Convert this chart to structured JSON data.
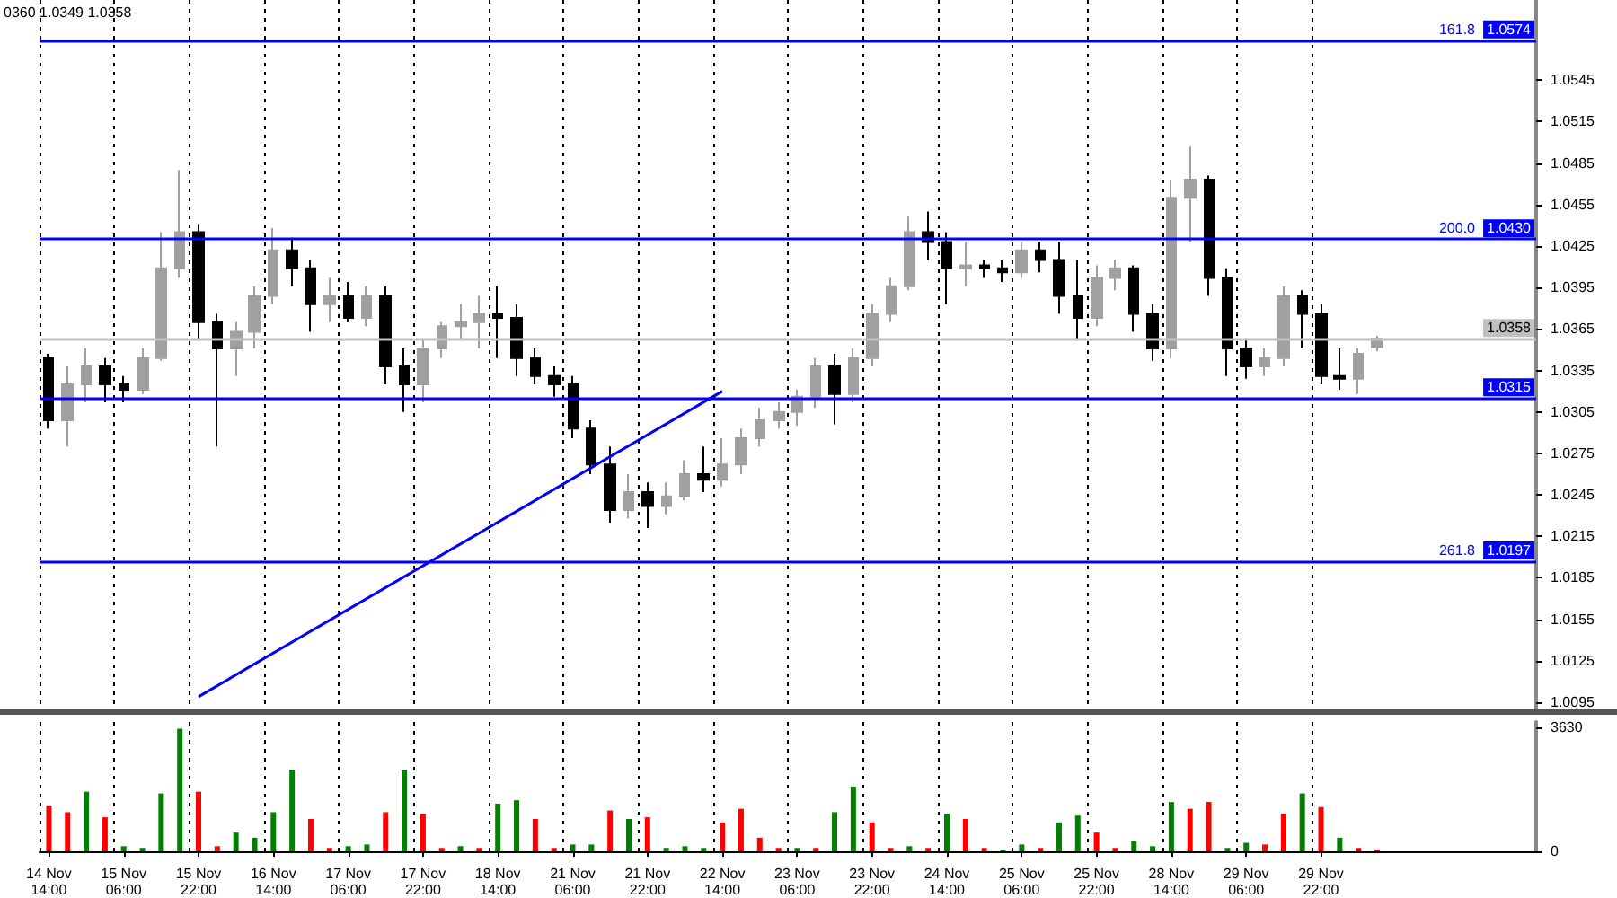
{
  "chart_data": [
    {
      "type": "candlestick",
      "annotations": [
        "0360 1.0349 1.0358",
        {
          "text": "161.8",
          "y": 1.0574
        },
        {
          "text": "200.0",
          "y": 1.043
        },
        {
          "text": "261.8",
          "y": 1.0197
        }
      ],
      "categories": [
        "14 Nov 14:00",
        null,
        null,
        null,
        "15 Nov 06:00",
        null,
        null,
        null,
        "15 Nov 22:00",
        null,
        null,
        null,
        "16 Nov 14:00",
        null,
        null,
        null,
        "17 Nov 06:00",
        null,
        null,
        null,
        "17 Nov 22:00",
        null,
        null,
        null,
        "18 Nov 14:00",
        null,
        null,
        null,
        "21 Nov 06:00",
        null,
        null,
        null,
        "21 Nov 22:00",
        null,
        null,
        null,
        "22 Nov 14:00",
        null,
        null,
        null,
        "23 Nov 06:00",
        null,
        null,
        null,
        "23 Nov 22:00",
        null,
        null,
        null,
        "24 Nov 14:00",
        null,
        null,
        null,
        "25 Nov 06:00",
        null,
        null,
        null,
        "25 Nov 22:00",
        null,
        null,
        null,
        "28 Nov 14:00",
        null,
        null,
        null,
        "29 Nov 06:00",
        null,
        null,
        null,
        "29 Nov 22:00",
        null,
        null,
        null,
        null,
        null,
        null,
        null,
        null,
        null,
        null,
        null
      ],
      "ohlc": [
        [
          1.0344,
          1.0347,
          1.0293,
          1.0299
        ],
        [
          1.0299,
          1.0338,
          1.028,
          1.0325
        ],
        [
          1.0325,
          1.0351,
          1.0312,
          1.0338
        ],
        [
          1.0338,
          1.0344,
          1.0312,
          1.0325
        ],
        [
          1.0325,
          1.0331,
          1.0312,
          1.0321
        ],
        [
          1.0321,
          1.0351,
          1.0318,
          1.0344
        ],
        [
          1.0344,
          1.0435,
          1.0342,
          1.0409
        ],
        [
          1.0409,
          1.048,
          1.0402,
          1.0435
        ],
        [
          1.0435,
          1.0441,
          1.0357,
          1.037
        ],
        [
          1.037,
          1.0376,
          1.028,
          1.0351
        ],
        [
          1.0351,
          1.037,
          1.0331,
          1.0363
        ],
        [
          1.0363,
          1.0396,
          1.0351,
          1.0389
        ],
        [
          1.0389,
          1.0438,
          1.0383,
          1.0422
        ],
        [
          1.0422,
          1.0431,
          1.0396,
          1.0409
        ],
        [
          1.0409,
          1.0415,
          1.0363,
          1.0383
        ],
        [
          1.0383,
          1.0402,
          1.037,
          1.0389
        ],
        [
          1.0389,
          1.0399,
          1.037,
          1.0373
        ],
        [
          1.0373,
          1.0396,
          1.0367,
          1.0389
        ],
        [
          1.0389,
          1.0396,
          1.0325,
          1.0338
        ],
        [
          1.0338,
          1.0351,
          1.0305,
          1.0325
        ],
        [
          1.0325,
          1.0357,
          1.0312,
          1.0351
        ],
        [
          1.0351,
          1.037,
          1.0344,
          1.0367
        ],
        [
          1.0367,
          1.0383,
          1.0357,
          1.037
        ],
        [
          1.037,
          1.0389,
          1.0351,
          1.0376
        ],
        [
          1.0376,
          1.0396,
          1.0344,
          1.0373
        ],
        [
          1.0373,
          1.0383,
          1.0331,
          1.0344
        ],
        [
          1.0344,
          1.0351,
          1.0325,
          1.0331
        ],
        [
          1.0331,
          1.0338,
          1.0316,
          1.0325
        ],
        [
          1.0325,
          1.0331,
          1.0286,
          1.0293
        ],
        [
          1.0293,
          1.0299,
          1.026,
          1.0267
        ],
        [
          1.0267,
          1.028,
          1.0225,
          1.0234
        ],
        [
          1.0234,
          1.026,
          1.0228,
          1.0247
        ],
        [
          1.0247,
          1.0254,
          1.0221,
          1.0237
        ],
        [
          1.0237,
          1.0254,
          1.0231,
          1.0244
        ],
        [
          1.0244,
          1.027,
          1.0241,
          1.026
        ],
        [
          1.026,
          1.028,
          1.0247,
          1.0256
        ],
        [
          1.0256,
          1.0286,
          1.0251,
          1.0267
        ],
        [
          1.0267,
          1.0293,
          1.026,
          1.0286
        ],
        [
          1.0286,
          1.0308,
          1.028,
          1.0299
        ],
        [
          1.0299,
          1.0312,
          1.0293,
          1.0305
        ],
        [
          1.0305,
          1.0321,
          1.0295,
          1.0316
        ],
        [
          1.0316,
          1.0344,
          1.0308,
          1.0338
        ],
        [
          1.0338,
          1.0347,
          1.0296,
          1.0318
        ],
        [
          1.0318,
          1.0351,
          1.0312,
          1.0344
        ],
        [
          1.0344,
          1.0383,
          1.0338,
          1.0376
        ],
        [
          1.0376,
          1.0402,
          1.037,
          1.0396
        ],
        [
          1.0396,
          1.0447,
          1.0393,
          1.0435
        ],
        [
          1.0435,
          1.045,
          1.0415,
          1.0428
        ],
        [
          1.0428,
          1.0435,
          1.0383,
          1.0409
        ],
        [
          1.0409,
          1.0428,
          1.0396,
          1.0411
        ],
        [
          1.0411,
          1.0415,
          1.0402,
          1.0409
        ],
        [
          1.0409,
          1.0415,
          1.0399,
          1.0406
        ],
        [
          1.0406,
          1.0428,
          1.0402,
          1.0422
        ],
        [
          1.0422,
          1.0428,
          1.0406,
          1.0415
        ],
        [
          1.0415,
          1.0428,
          1.0376,
          1.0389
        ],
        [
          1.0389,
          1.0415,
          1.0357,
          1.0373
        ],
        [
          1.0373,
          1.0411,
          1.0367,
          1.0402
        ],
        [
          1.0402,
          1.0415,
          1.0393,
          1.0409
        ],
        [
          1.0409,
          1.0411,
          1.0363,
          1.0376
        ],
        [
          1.0376,
          1.0383,
          1.0342,
          1.0351
        ],
        [
          1.0351,
          1.0473,
          1.0344,
          1.046
        ],
        [
          1.046,
          1.0497,
          1.0428,
          1.0473
        ],
        [
          1.0473,
          1.0476,
          1.0389,
          1.0402
        ],
        [
          1.0402,
          1.0409,
          1.0331,
          1.0351
        ],
        [
          1.0351,
          1.0357,
          1.0329,
          1.0338
        ],
        [
          1.0338,
          1.0351,
          1.0331,
          1.0344
        ],
        [
          1.0344,
          1.0396,
          1.0338,
          1.0389
        ],
        [
          1.0389,
          1.0393,
          1.0351,
          1.0376
        ],
        [
          1.0376,
          1.0383,
          1.0325,
          1.0331
        ],
        [
          1.0331,
          1.0351,
          1.0321,
          1.0329
        ],
        [
          1.0329,
          1.0351,
          1.0318,
          1.0347
        ],
        [
          1.0352,
          1.036,
          1.0349,
          1.0358
        ],
        null,
        null,
        null,
        null,
        null,
        null,
        null,
        null
      ],
      "colors": [
        "#000000",
        "#a0a0a0",
        "#a0a0a0",
        "#000000",
        "#000000",
        "#a0a0a0",
        "#a0a0a0",
        "#a0a0a0",
        "#000000",
        "#000000",
        "#a0a0a0",
        "#a0a0a0",
        "#a0a0a0",
        "#000000",
        "#000000",
        "#a0a0a0",
        "#000000",
        "#a0a0a0",
        "#000000",
        "#000000",
        "#a0a0a0",
        "#a0a0a0",
        "#a0a0a0",
        "#a0a0a0",
        "#000000",
        "#000000",
        "#000000",
        "#000000",
        "#000000",
        "#000000",
        "#000000",
        "#a0a0a0",
        "#000000",
        "#a0a0a0",
        "#a0a0a0",
        "#000000",
        "#a0a0a0",
        "#a0a0a0",
        "#a0a0a0",
        "#a0a0a0",
        "#a0a0a0",
        "#a0a0a0",
        "#000000",
        "#a0a0a0",
        "#a0a0a0",
        "#a0a0a0",
        "#a0a0a0",
        "#000000",
        "#000000",
        "#a0a0a0",
        "#000000",
        "#000000",
        "#a0a0a0",
        "#000000",
        "#000000",
        "#000000",
        "#a0a0a0",
        "#a0a0a0",
        "#000000",
        "#000000",
        "#a0a0a0",
        "#a0a0a0",
        "#000000",
        "#000000",
        "#000000",
        "#a0a0a0",
        "#a0a0a0",
        "#000000",
        "#000000",
        "#000000",
        "#a0a0a0",
        "#a0a0a0",
        null,
        null,
        null,
        null,
        null,
        null,
        null,
        null
      ],
      "series": [
        {
          "type": "line",
          "x": [
            "15 Nov 22:00",
            "22 Nov 14:00"
          ],
          "values": [
            1.0099,
            1.032
          ],
          "color": "#0000ff"
        }
      ],
      "ylim": [
        1.009,
        1.0603
      ],
      "yticks": [
        1.0095,
        1.0125,
        1.0155,
        1.0185,
        1.0215,
        1.0245,
        1.0275,
        1.0305,
        1.0335,
        1.0365,
        1.0395,
        1.0425,
        1.0455,
        1.0485,
        1.0515,
        1.0545
      ],
      "ref_lines": [
        {
          "axis": "y",
          "value": 1.0574,
          "label": "1.0574",
          "color": "#0000ff"
        },
        {
          "axis": "y",
          "value": 1.043,
          "label": "1.0430",
          "color": "#0000ff"
        },
        {
          "axis": "y",
          "value": 1.0315,
          "label": "1.0315",
          "color": "#0000ff"
        },
        {
          "axis": "y",
          "value": 1.0197,
          "label": "1.0197",
          "color": "#0000ff"
        },
        {
          "axis": "y",
          "value": 1.0358,
          "label": "1.0358",
          "color": "#c0c0c0"
        }
      ],
      "tick_labels": "y",
      "grid": "x"
    },
    {
      "type": "bar",
      "categories": [
        "14 Nov 14:00",
        null,
        null,
        null,
        "15 Nov 06:00",
        null,
        null,
        null,
        "15 Nov 22:00",
        null,
        null,
        null,
        "16 Nov 14:00",
        null,
        null,
        null,
        "17 Nov 06:00",
        null,
        null,
        null,
        "17 Nov 22:00",
        null,
        null,
        null,
        "18 Nov 14:00",
        null,
        null,
        null,
        "21 Nov 06:00",
        null,
        null,
        null,
        "21 Nov 22:00",
        null,
        null,
        null,
        "22 Nov 14:00",
        null,
        null,
        null,
        "23 Nov 06:00",
        null,
        null,
        null,
        "23 Nov 22:00",
        null,
        null,
        null,
        "24 Nov 14:00",
        null,
        null,
        null,
        "25 Nov 06:00",
        null,
        null,
        null,
        "25 Nov 22:00",
        null,
        null,
        null,
        "28 Nov 14:00",
        null,
        null,
        null,
        "29 Nov 06:00",
        null,
        null,
        null,
        "29 Nov 22:00",
        null,
        null,
        null,
        null,
        null,
        null,
        null,
        null,
        null,
        null,
        null
      ],
      "values": [
        1350,
        1150,
        1750,
        1000,
        150,
        100,
        1700,
        3600,
        1750,
        150,
        550,
        400,
        1150,
        2400,
        950,
        100,
        150,
        200,
        1150,
        2400,
        1100,
        100,
        150,
        100,
        1400,
        1500,
        950,
        100,
        200,
        200,
        1200,
        950,
        1000,
        100,
        150,
        100,
        850,
        1250,
        400,
        100,
        100,
        100,
        1150,
        1900,
        850,
        100,
        150,
        100,
        1100,
        950,
        100,
        50,
        200,
        100,
        850,
        1050,
        550,
        100,
        300,
        150,
        1450,
        1250,
        1450,
        100,
        250,
        200,
        1100,
        1700,
        1300,
        400,
        100,
        50,
        null,
        null,
        null,
        null,
        null,
        null,
        null,
        null
      ],
      "colors": [
        "#ff0000",
        "#ff0000",
        "#008000",
        "#ff0000",
        "#008000",
        "#008000",
        "#008000",
        "#008000",
        "#ff0000",
        "#ff0000",
        "#008000",
        "#008000",
        "#008000",
        "#008000",
        "#ff0000",
        "#ff0000",
        "#008000",
        "#008000",
        "#ff0000",
        "#008000",
        "#ff0000",
        "#ff0000",
        "#008000",
        "#ff0000",
        "#008000",
        "#008000",
        "#ff0000",
        "#ff0000",
        "#008000",
        "#008000",
        "#ff0000",
        "#008000",
        "#ff0000",
        "#008000",
        "#008000",
        "#008000",
        "#ff0000",
        "#ff0000",
        "#ff0000",
        "#ff0000",
        "#008000",
        "#ff0000",
        "#008000",
        "#008000",
        "#ff0000",
        "#ff0000",
        "#008000",
        "#ff0000",
        "#008000",
        "#ff0000",
        "#ff0000",
        "#008000",
        "#008000",
        "#ff0000",
        "#008000",
        "#008000",
        "#ff0000",
        "#ff0000",
        "#008000",
        "#008000",
        "#008000",
        "#ff0000",
        "#ff0000",
        "#008000",
        "#008000",
        "#ff0000",
        "#ff0000",
        "#008000",
        "#ff0000",
        "#008000",
        "#ff0000",
        "#ff0000",
        null,
        null,
        null,
        null,
        null,
        null,
        null,
        null
      ],
      "ylim": [
        0,
        3800
      ],
      "yticks": [
        0,
        {
          "value": 3630,
          "label": "3630"
        }
      ],
      "grid": "x"
    }
  ]
}
